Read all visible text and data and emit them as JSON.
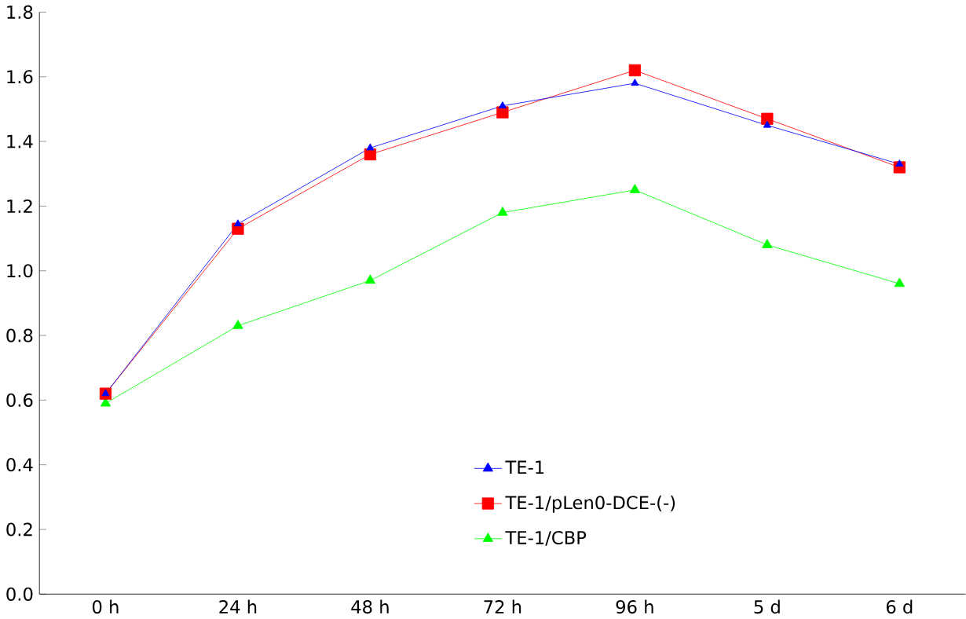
{
  "chart_data": {
    "type": "line",
    "categories": [
      "0 h",
      "24 h",
      "48 h",
      "72 h",
      "96 h",
      "5 d",
      "6 d"
    ],
    "series": [
      {
        "name": "TE-1",
        "color": "#0000ff",
        "marker": "triangle",
        "values": [
          0.62,
          1.145,
          1.38,
          1.51,
          1.58,
          1.45,
          1.33
        ]
      },
      {
        "name": "TE-1/pLen0-DCE-(-)",
        "color": "#ff0000",
        "marker": "square",
        "values": [
          0.62,
          1.13,
          1.36,
          1.49,
          1.62,
          1.47,
          1.32
        ]
      },
      {
        "name": "TE-1/CBP",
        "color": "#00ff00",
        "marker": "triangle",
        "values": [
          0.59,
          0.83,
          0.97,
          1.18,
          1.25,
          1.08,
          0.96
        ]
      }
    ],
    "ylim": [
      0,
      1.8
    ],
    "yticks": [
      {
        "value": 0,
        "label": "0.0"
      },
      0.2,
      0.4,
      0.6,
      0.8,
      {
        "value": 1,
        "label": "1.0"
      },
      1.2,
      1.4,
      1.6,
      1.8
    ],
    "grid": false,
    "legend": "bottom",
    "line_style": "solid"
  }
}
